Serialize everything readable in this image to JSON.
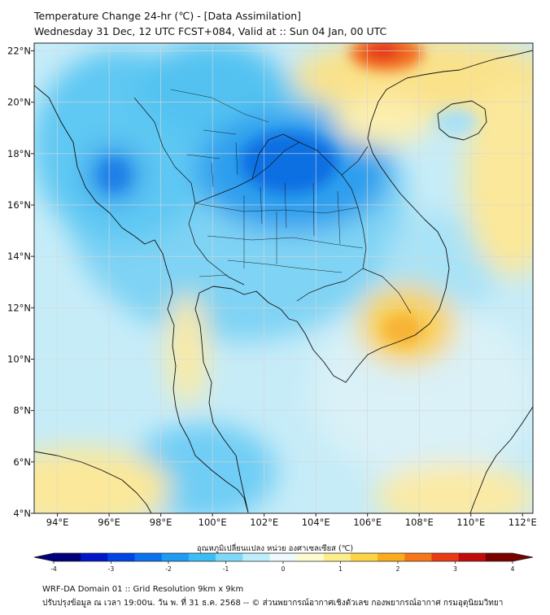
{
  "title": {
    "line1": "Temperature Change 24-hr (℃) - [Data Assimilation]",
    "line2": "Wednesday 31 Dec, 12 UTC FCST+084, Valid at :: Sun 04 Jan, 00 UTC"
  },
  "axes": {
    "lon_labels": [
      "94°E",
      "96°E",
      "98°E",
      "100°E",
      "102°E",
      "104°E",
      "106°E",
      "108°E",
      "110°E",
      "112°E"
    ],
    "lat_labels": [
      "22°N",
      "20°N",
      "18°N",
      "16°N",
      "14°N",
      "12°N",
      "10°N",
      "8°N",
      "6°N",
      "4°N"
    ],
    "lon_values": [
      94,
      96,
      98,
      100,
      102,
      104,
      106,
      108,
      110,
      112
    ],
    "lat_values": [
      22,
      20,
      18,
      16,
      14,
      12,
      10,
      8,
      6,
      4
    ],
    "lon_range": [
      93.1,
      112.4
    ],
    "lat_range": [
      4.0,
      22.3
    ]
  },
  "colorbar": {
    "label": "อุณหภูมิเปลี่ยนแปลง หน่วย องศาเซลเซียส (℃)",
    "ticks": [
      "-4",
      "-3",
      "-2",
      "-1",
      "0",
      "1",
      "2",
      "3",
      "4"
    ],
    "tick_values": [
      -4,
      -3,
      -2,
      -1,
      0,
      1,
      2,
      3,
      4
    ],
    "colors": [
      "#00007a",
      "#0016c8",
      "#0044e6",
      "#0a72ef",
      "#1e9bf3",
      "#3cbdf5",
      "#7fd8f8",
      "#bdeefb",
      "#eefafd",
      "#fdfbd2",
      "#fcee8c",
      "#fcd444",
      "#fbac1c",
      "#f7761a",
      "#ea3a14",
      "#c20a0a",
      "#7a0000"
    ]
  },
  "footer": {
    "line1": "WRF-DA Domain 01 :: Grid Resolution 9km x 9km",
    "line2": "ปรับปรุงข้อมูล ณ เวลา 19:00น. วัน พ. ที่ 31 ธ.ค. 2568 -- © ส่วนพยากรณ์อากาศเชิงตัวเลข กองพยากรณ์อากาศ กรมอุตุนิยมวิทยา"
  },
  "colors": {
    "background": "#c6ecf8",
    "coastline": "#111111",
    "grid": "#d7d7d7"
  }
}
